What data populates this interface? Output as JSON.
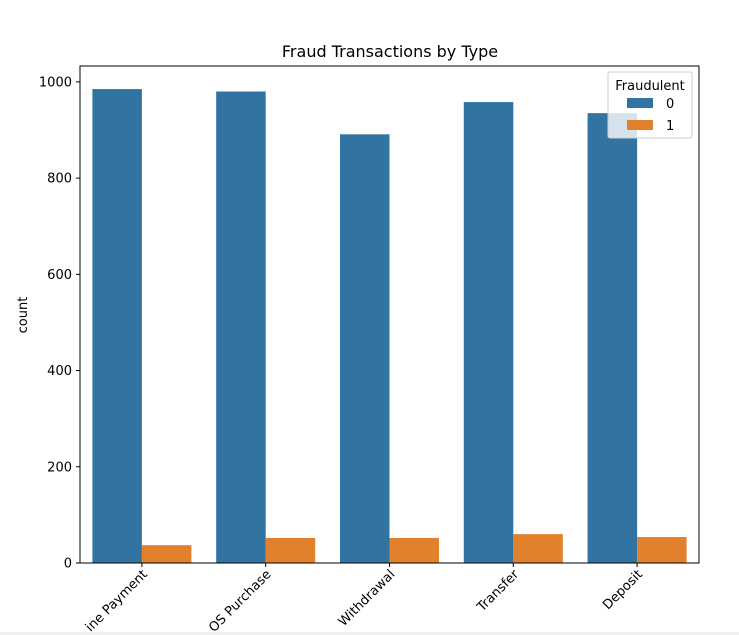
{
  "chart_data": {
    "type": "bar",
    "title": "Fraud Transactions by Type",
    "xlabel": "",
    "ylabel": "count",
    "categories": [
      "Online Payment",
      "POS Purchase",
      "Withdrawal",
      "Transfer",
      "Deposit"
    ],
    "category_labels_visible": [
      "ine Payment",
      "OS Purchase",
      "Withdrawal",
      "Transfer",
      "Deposit"
    ],
    "series": [
      {
        "name": "0",
        "color": "#3274a1",
        "values": [
          985,
          980,
          891,
          958,
          935
        ]
      },
      {
        "name": "1",
        "color": "#e1812c",
        "values": [
          37,
          52,
          52,
          60,
          54
        ]
      }
    ],
    "ylim": [
      0,
      1033
    ],
    "yticks": [
      0,
      200,
      400,
      600,
      800,
      1000
    ],
    "legend": {
      "title": "Fraudulent",
      "placement": "top-right"
    },
    "grid": false
  }
}
